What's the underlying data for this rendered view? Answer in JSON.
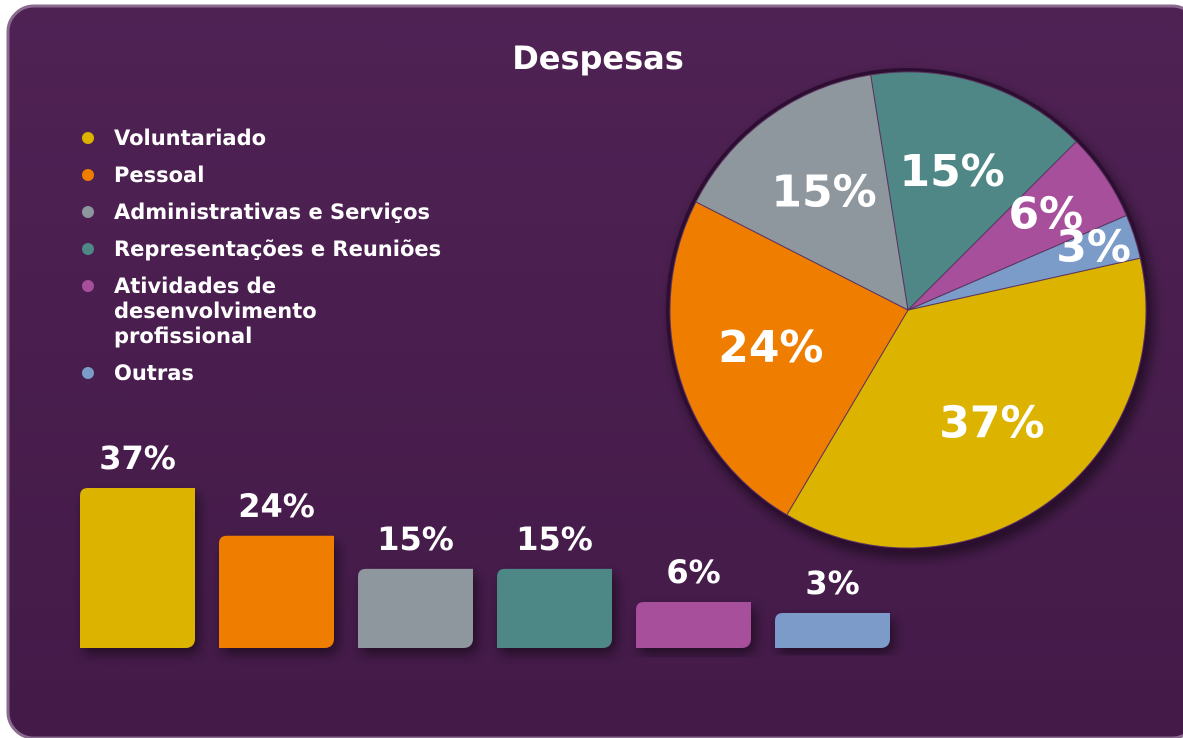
{
  "chart_data": [
    {
      "type": "pie",
      "title": "Despesas",
      "categories": [
        "Voluntariado",
        "Pessoal",
        "Administrativas e Serviços",
        "Representações e Reuniões",
        "Atividades de desenvolvimento profissional",
        "Outras"
      ],
      "values": [
        37,
        24,
        15,
        15,
        6,
        3
      ],
      "value_labels": [
        "37%",
        "24%",
        "15%",
        "15%",
        "6%",
        "3%"
      ],
      "colors": [
        "#dcb400",
        "#ef7d00",
        "#8e969e",
        "#4e8786",
        "#a74f9b",
        "#7b9bc8"
      ]
    },
    {
      "type": "bar",
      "values": [
        37,
        24,
        15,
        15,
        6,
        3
      ],
      "value_labels": [
        "37%",
        "24%",
        "15%",
        "15%",
        "6%",
        "3%"
      ],
      "colors": [
        "#dcb400",
        "#ef7d00",
        "#8e969e",
        "#4e8786",
        "#a74f9b",
        "#7b9bc8"
      ]
    }
  ]
}
